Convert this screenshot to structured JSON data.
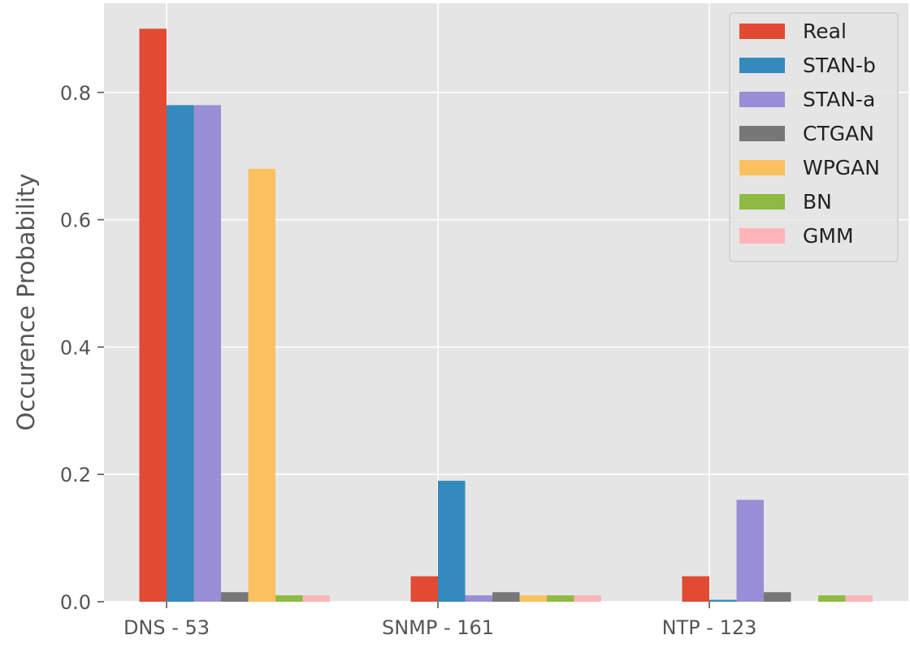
{
  "chart_data": {
    "type": "bar",
    "title": "",
    "xlabel": "",
    "ylabel": "Occurence Probability",
    "categories": [
      "DNS - 53",
      "SNMP - 161",
      "NTP - 123"
    ],
    "ylim": [
      0,
      0.94
    ],
    "yticks": [
      0.0,
      0.2,
      0.4,
      0.6,
      0.8
    ],
    "ytick_labels": [
      "0.0",
      "0.2",
      "0.4",
      "0.6",
      "0.8"
    ],
    "grid": true,
    "legend_position": "top-right",
    "style": "ggplot",
    "series": [
      {
        "name": "Real",
        "color": "#E24A33",
        "values": [
          0.9,
          0.04,
          0.04
        ]
      },
      {
        "name": "STAN-b",
        "color": "#348ABD",
        "values": [
          0.78,
          0.19,
          0.003
        ]
      },
      {
        "name": "STAN-a",
        "color": "#988ED5",
        "values": [
          0.78,
          0.01,
          0.16
        ]
      },
      {
        "name": "CTGAN",
        "color": "#777777",
        "values": [
          0.015,
          0.015,
          0.015
        ]
      },
      {
        "name": "WPGAN",
        "color": "#FBC15E",
        "values": [
          0.68,
          0.01,
          0.0
        ]
      },
      {
        "name": "BN",
        "color": "#8EBA42",
        "values": [
          0.01,
          0.01,
          0.01
        ]
      },
      {
        "name": "GMM",
        "color": "#FFB5B8",
        "values": [
          0.01,
          0.01,
          0.01
        ]
      }
    ]
  }
}
